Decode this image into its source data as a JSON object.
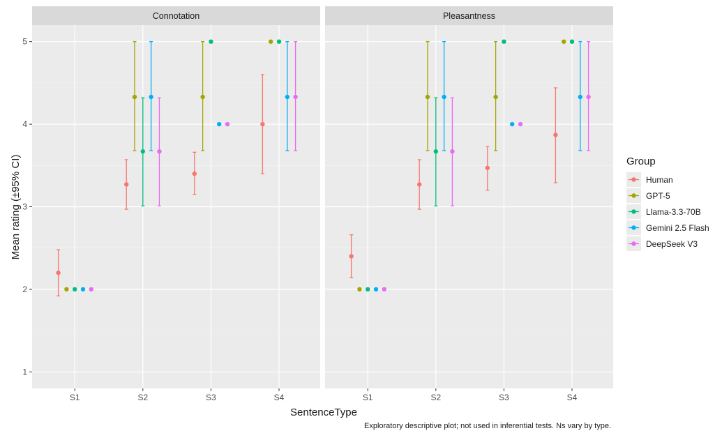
{
  "chart_data": {
    "type": "scatter",
    "subtype": "point-errorbar",
    "ylabel": "Mean rating (±95% CI)",
    "xlabel": "SentenceType",
    "caption": "Exploratory descriptive plot; not used in inferential tests. Ns vary by type.",
    "ylim": [
      0.8,
      5.2
    ],
    "yticks": [
      1,
      2,
      3,
      4,
      5
    ],
    "categories": [
      "S1",
      "S2",
      "S3",
      "S4"
    ],
    "grid": true,
    "legend": {
      "title": "Group",
      "position": "right"
    },
    "groups": [
      {
        "name": "Human",
        "color": "#F8766D"
      },
      {
        "name": "GPT-5",
        "color": "#A3A500"
      },
      {
        "name": "Llama-3.3-70B",
        "color": "#00BF7D"
      },
      {
        "name": "Gemini 2.5 Flash",
        "color": "#00B0F6"
      },
      {
        "name": "DeepSeek V3",
        "color": "#E76BF3"
      }
    ],
    "panels": [
      {
        "title": "Connotation",
        "series": [
          {
            "name": "Human",
            "mean": [
              2.2,
              3.27,
              3.4,
              4.0
            ],
            "lower": [
              1.92,
              2.97,
              3.15,
              3.4
            ],
            "upper": [
              2.48,
              3.57,
              3.66,
              4.6
            ]
          },
          {
            "name": "GPT-5",
            "mean": [
              2.0,
              4.33,
              4.33,
              5.0
            ],
            "lower": [
              2.0,
              3.68,
              3.68,
              5.0
            ],
            "upper": [
              2.0,
              5.0,
              5.0,
              5.0
            ]
          },
          {
            "name": "Llama-3.3-70B",
            "mean": [
              2.0,
              3.67,
              5.0,
              5.0
            ],
            "lower": [
              2.0,
              3.01,
              5.0,
              5.0
            ],
            "upper": [
              2.0,
              4.32,
              5.0,
              5.0
            ]
          },
          {
            "name": "Gemini 2.5 Flash",
            "mean": [
              2.0,
              4.33,
              4.0,
              4.33
            ],
            "lower": [
              2.0,
              3.68,
              4.0,
              3.68
            ],
            "upper": [
              2.0,
              5.0,
              4.0,
              5.0
            ]
          },
          {
            "name": "DeepSeek V3",
            "mean": [
              2.0,
              3.67,
              4.0,
              4.33
            ],
            "lower": [
              2.0,
              3.01,
              4.0,
              3.68
            ],
            "upper": [
              2.0,
              4.32,
              4.0,
              5.0
            ]
          }
        ]
      },
      {
        "title": "Pleasantness",
        "series": [
          {
            "name": "Human",
            "mean": [
              2.4,
              3.27,
              3.47,
              3.87
            ],
            "lower": [
              2.14,
              2.97,
              3.2,
              3.29
            ],
            "upper": [
              2.66,
              3.57,
              3.73,
              4.44
            ]
          },
          {
            "name": "GPT-5",
            "mean": [
              2.0,
              4.33,
              4.33,
              5.0
            ],
            "lower": [
              2.0,
              3.68,
              3.68,
              5.0
            ],
            "upper": [
              2.0,
              5.0,
              5.0,
              5.0
            ]
          },
          {
            "name": "Llama-3.3-70B",
            "mean": [
              2.0,
              3.67,
              5.0,
              5.0
            ],
            "lower": [
              2.0,
              3.01,
              5.0,
              5.0
            ],
            "upper": [
              2.0,
              4.32,
              5.0,
              5.0
            ]
          },
          {
            "name": "Gemini 2.5 Flash",
            "mean": [
              2.0,
              4.33,
              4.0,
              4.33
            ],
            "lower": [
              2.0,
              3.68,
              4.0,
              3.68
            ],
            "upper": [
              2.0,
              5.0,
              4.0,
              5.0
            ]
          },
          {
            "name": "DeepSeek V3",
            "mean": [
              2.0,
              3.67,
              4.0,
              4.33
            ],
            "lower": [
              2.0,
              3.01,
              4.0,
              3.68
            ],
            "upper": [
              2.0,
              4.32,
              4.0,
              5.0
            ]
          }
        ]
      }
    ]
  }
}
